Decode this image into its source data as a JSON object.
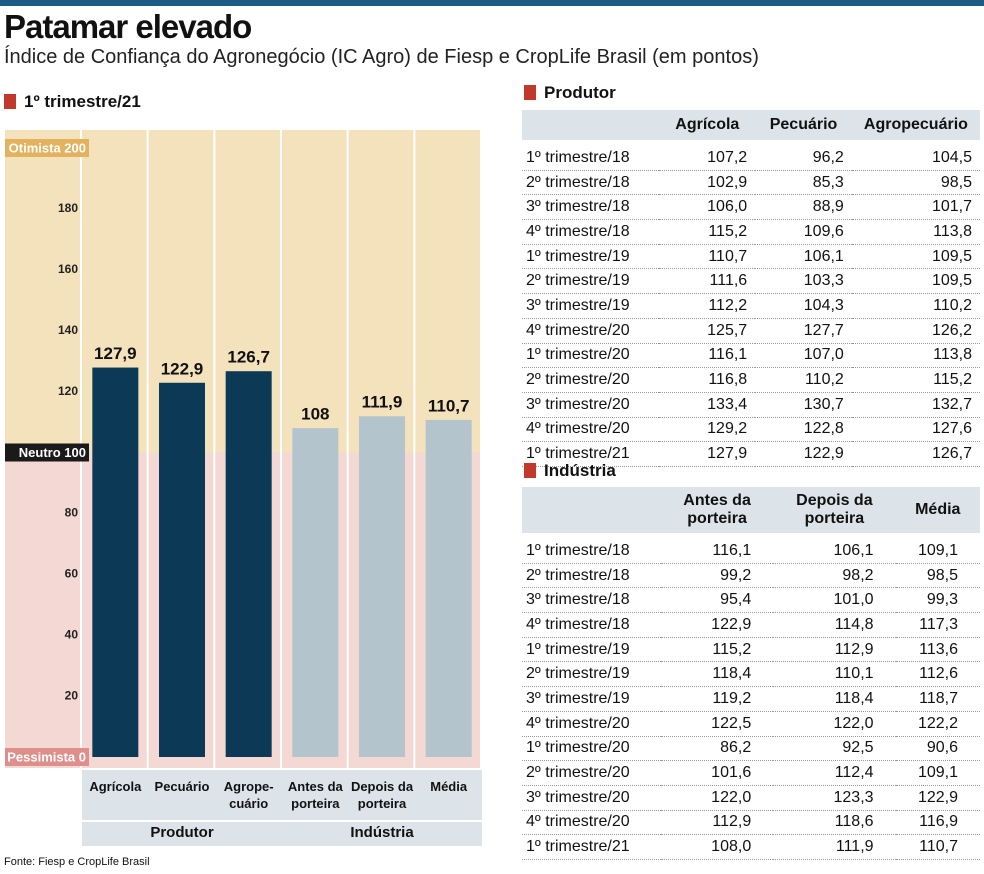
{
  "header": {
    "title": "Patamar elevado",
    "subtitle": "Índice de Confiança do Agronegócio (IC Agro) de Fiesp e CropLife Brasil (em pontos)"
  },
  "chart_data": {
    "type": "bar",
    "title": "1º trimestre/21",
    "categories": [
      "Agrícola",
      "Pecuário",
      "Agrope-cuário",
      "Antes da porteira",
      "Depois da porteira",
      "Média"
    ],
    "series": [
      {
        "name": "Produtor",
        "color": "#0c3a56",
        "values": [
          127.9,
          122.9,
          126.7,
          null,
          null,
          null
        ],
        "value_labels": [
          "127,9",
          "122,9",
          "126,7",
          null,
          null,
          null
        ]
      },
      {
        "name": "Indústria",
        "color": "#b3c4cd",
        "values": [
          null,
          null,
          null,
          108,
          111.9,
          110.7
        ],
        "value_labels": [
          null,
          null,
          null,
          "108",
          "111,9",
          "110,7"
        ]
      }
    ],
    "ylim": [
      0,
      200
    ],
    "yticks": [
      {
        "value": 0,
        "label": "Pessimista 0"
      },
      20,
      40,
      60,
      80,
      {
        "value": 100,
        "label": "Neutro 100"
      },
      120,
      140,
      160,
      180,
      {
        "value": 200,
        "label": "Otimista 200"
      }
    ],
    "grid": false
  },
  "tables": [
    {
      "title": "Produtor",
      "columns": [
        "Agrícola",
        "Pecuário",
        "Agropecuário"
      ],
      "rows": [
        [
          "1º trimestre/18",
          "107,2",
          "96,2",
          "104,5"
        ],
        [
          "2º trimestre/18",
          "102,9",
          "85,3",
          "98,5"
        ],
        [
          "3º trimestre/18",
          "106,0",
          "88,9",
          "101,7"
        ],
        [
          "4º trimestre/18",
          "115,2",
          "109,6",
          "113,8"
        ],
        [
          "1º trimestre/19",
          "110,7",
          "106,1",
          "109,5"
        ],
        [
          "2º trimestre/19",
          "111,6",
          "103,3",
          "109,5"
        ],
        [
          "3º trimestre/19",
          "112,2",
          "104,3",
          "110,2"
        ],
        [
          "4º trimestre/20",
          "125,7",
          "127,7",
          "126,2"
        ],
        [
          "1º trimestre/20",
          "116,1",
          "107,0",
          "113,8"
        ],
        [
          "2º trimestre/20",
          "116,8",
          "110,2",
          "115,2"
        ],
        [
          "3º trimestre/20",
          "133,4",
          "130,7",
          "132,7"
        ],
        [
          "4º trimestre/20",
          "129,2",
          "122,8",
          "127,6"
        ],
        [
          "1º trimestre/21",
          "127,9",
          "122,9",
          "126,7"
        ]
      ]
    },
    {
      "title": "Indústria",
      "columns": [
        "Antes da porteira",
        "Depois da porteira",
        "Média"
      ],
      "rows": [
        [
          "1º trimestre/18",
          "116,1",
          "106,1",
          "109,1"
        ],
        [
          "2º trimestre/18",
          "99,2",
          "98,2",
          "98,5"
        ],
        [
          "3º trimestre/18",
          "95,4",
          "101,0",
          "99,3"
        ],
        [
          "4º trimestre/18",
          "122,9",
          "114,8",
          "117,3"
        ],
        [
          "1º trimestre/19",
          "115,2",
          "112,9",
          "113,6"
        ],
        [
          "2º trimestre/19",
          "118,4",
          "110,1",
          "112,6"
        ],
        [
          "3º trimestre/19",
          "119,2",
          "118,4",
          "118,7"
        ],
        [
          "4º trimestre/20",
          "122,5",
          "122,0",
          "122,2"
        ],
        [
          "1º trimestre/20",
          "86,2",
          "92,5",
          "90,6"
        ],
        [
          "2º trimestre/20",
          "101,6",
          "112,4",
          "109,1"
        ],
        [
          "3º trimestre/20",
          "122,0",
          "123,3",
          "122,9"
        ],
        [
          "4º trimestre/20",
          "112,9",
          "118,6",
          "116,9"
        ],
        [
          "1º trimestre/21",
          "108,0",
          "111,9",
          "110,7"
        ]
      ]
    }
  ],
  "source": "Fonte: Fiesp e CropLife Brasil"
}
